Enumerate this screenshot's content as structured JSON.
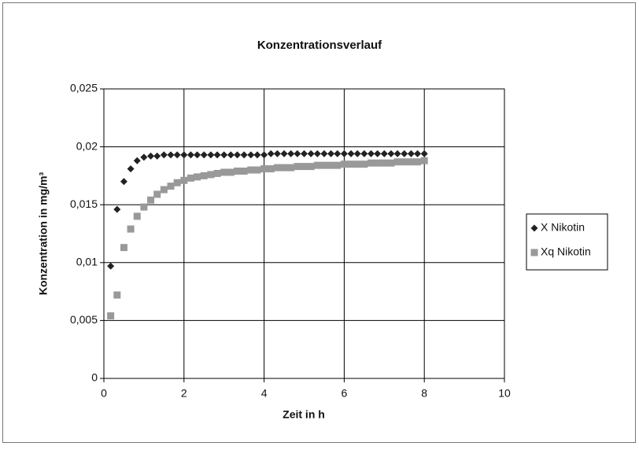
{
  "chart_data": {
    "type": "scatter",
    "title": "Konzentrationsverlauf",
    "x_label": "Zeit in h",
    "y_label": "Konzentration in mg/m³",
    "x": [
      0.17,
      0.33,
      0.5,
      0.67,
      0.83,
      1,
      1.17,
      1.33,
      1.5,
      1.67,
      1.83,
      2,
      2.17,
      2.33,
      2.5,
      2.67,
      2.83,
      3,
      3.17,
      3.33,
      3.5,
      3.67,
      3.83,
      4,
      4.17,
      4.33,
      4.5,
      4.67,
      4.83,
      5,
      5.17,
      5.33,
      5.5,
      5.67,
      5.83,
      6,
      6.17,
      6.33,
      6.5,
      6.67,
      6.83,
      7,
      7.17,
      7.33,
      7.5,
      7.67,
      7.83,
      8
    ],
    "series": [
      {
        "name": "X Nikotin",
        "color": "#222222",
        "marker": "diamond",
        "values": [
          0.0097,
          0.0146,
          0.017,
          0.0181,
          0.0188,
          0.0191,
          0.0192,
          0.0192,
          0.0193,
          0.0193,
          0.0193,
          0.0193,
          0.0193,
          0.0193,
          0.0193,
          0.0193,
          0.0193,
          0.0193,
          0.0193,
          0.0193,
          0.0193,
          0.0193,
          0.0193,
          0.0193,
          0.0194,
          0.0194,
          0.0194,
          0.0194,
          0.0194,
          0.0194,
          0.0194,
          0.0194,
          0.0194,
          0.0194,
          0.0194,
          0.0194,
          0.0194,
          0.0194,
          0.0194,
          0.0194,
          0.0194,
          0.0194,
          0.0194,
          0.0194,
          0.0194,
          0.0194,
          0.0194,
          0.0194
        ]
      },
      {
        "name": "Xq Nikotin",
        "color": "#999999",
        "marker": "square",
        "values": [
          0.0054,
          0.0072,
          0.0113,
          0.0129,
          0.014,
          0.0148,
          0.0154,
          0.0159,
          0.0163,
          0.0166,
          0.0169,
          0.0171,
          0.0173,
          0.0174,
          0.0175,
          0.0176,
          0.0177,
          0.0178,
          0.0178,
          0.0179,
          0.0179,
          0.018,
          0.018,
          0.0181,
          0.0181,
          0.0182,
          0.0182,
          0.0182,
          0.0183,
          0.0183,
          0.0183,
          0.0184,
          0.0184,
          0.0184,
          0.0184,
          0.0185,
          0.0185,
          0.0185,
          0.0185,
          0.0186,
          0.0186,
          0.0186,
          0.0186,
          0.0187,
          0.0187,
          0.0187,
          0.0187,
          0.0188
        ]
      }
    ],
    "xlim": [
      0,
      10
    ],
    "xticks": [
      0,
      2,
      4,
      6,
      8,
      10
    ],
    "ylim": [
      0,
      0.025
    ],
    "yticks": [
      0,
      {
        "value": 0.005,
        "label": "0,005"
      },
      {
        "value": 0.01,
        "label": "0,01"
      },
      {
        "value": 0.015,
        "label": "0,015"
      },
      {
        "value": 0.02,
        "label": "0,02"
      },
      {
        "value": 0.025,
        "label": "0,025"
      }
    ],
    "grid": true,
    "legend": "right"
  }
}
